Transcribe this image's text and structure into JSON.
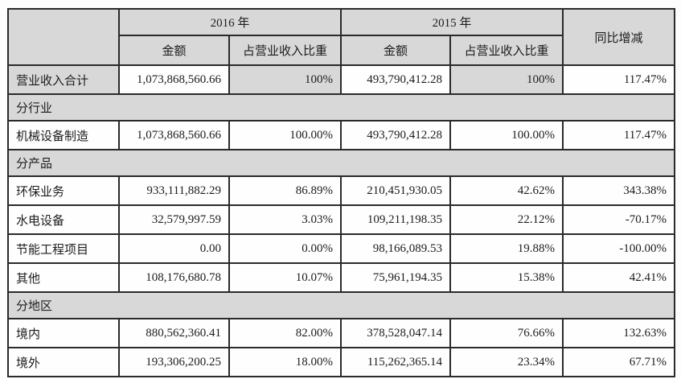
{
  "header": {
    "year_2016": "2016 年",
    "year_2015": "2015 年",
    "amount": "金额",
    "share_of_revenue": "占营业收入比重",
    "yoy_change": "同比增减"
  },
  "colors": {
    "shaded_cell": "#d8d8d8",
    "border": "#2a2a2a",
    "cell_background": "#fefefe"
  },
  "rows": [
    {
      "type": "data",
      "label": "营业收入合计",
      "amount_2016": "1,073,868,560.66",
      "share_2016": "100%",
      "amount_2015": "493,790,412.28",
      "share_2015": "100%",
      "yoy": "117.47%"
    },
    {
      "type": "section",
      "label": "分行业"
    },
    {
      "type": "data",
      "label": "机械设备制造",
      "amount_2016": "1,073,868,560.66",
      "share_2016": "100.00%",
      "amount_2015": "493,790,412.28",
      "share_2015": "100.00%",
      "yoy": "117.47%"
    },
    {
      "type": "section",
      "label": "分产品"
    },
    {
      "type": "data",
      "label": "环保业务",
      "amount_2016": "933,111,882.29",
      "share_2016": "86.89%",
      "amount_2015": "210,451,930.05",
      "share_2015": "42.62%",
      "yoy": "343.38%"
    },
    {
      "type": "data",
      "label": "水电设备",
      "amount_2016": "32,579,997.59",
      "share_2016": "3.03%",
      "amount_2015": "109,211,198.35",
      "share_2015": "22.12%",
      "yoy": "-70.17%"
    },
    {
      "type": "data",
      "label": "节能工程项目",
      "amount_2016": "0.00",
      "share_2016": "0.00%",
      "amount_2015": "98,166,089.53",
      "share_2015": "19.88%",
      "yoy": "-100.00%"
    },
    {
      "type": "data",
      "label": "其他",
      "amount_2016": "108,176,680.78",
      "share_2016": "10.07%",
      "amount_2015": "75,961,194.35",
      "share_2015": "15.38%",
      "yoy": "42.41%"
    },
    {
      "type": "section",
      "label": "分地区"
    },
    {
      "type": "data",
      "label": "境内",
      "amount_2016": "880,562,360.41",
      "share_2016": "82.00%",
      "amount_2015": "378,528,047.14",
      "share_2015": "76.66%",
      "yoy": "132.63%"
    },
    {
      "type": "data",
      "label": "境外",
      "amount_2016": "193,306,200.25",
      "share_2016": "18.00%",
      "amount_2015": "115,262,365.14",
      "share_2015": "23.34%",
      "yoy": "67.71%"
    }
  ]
}
